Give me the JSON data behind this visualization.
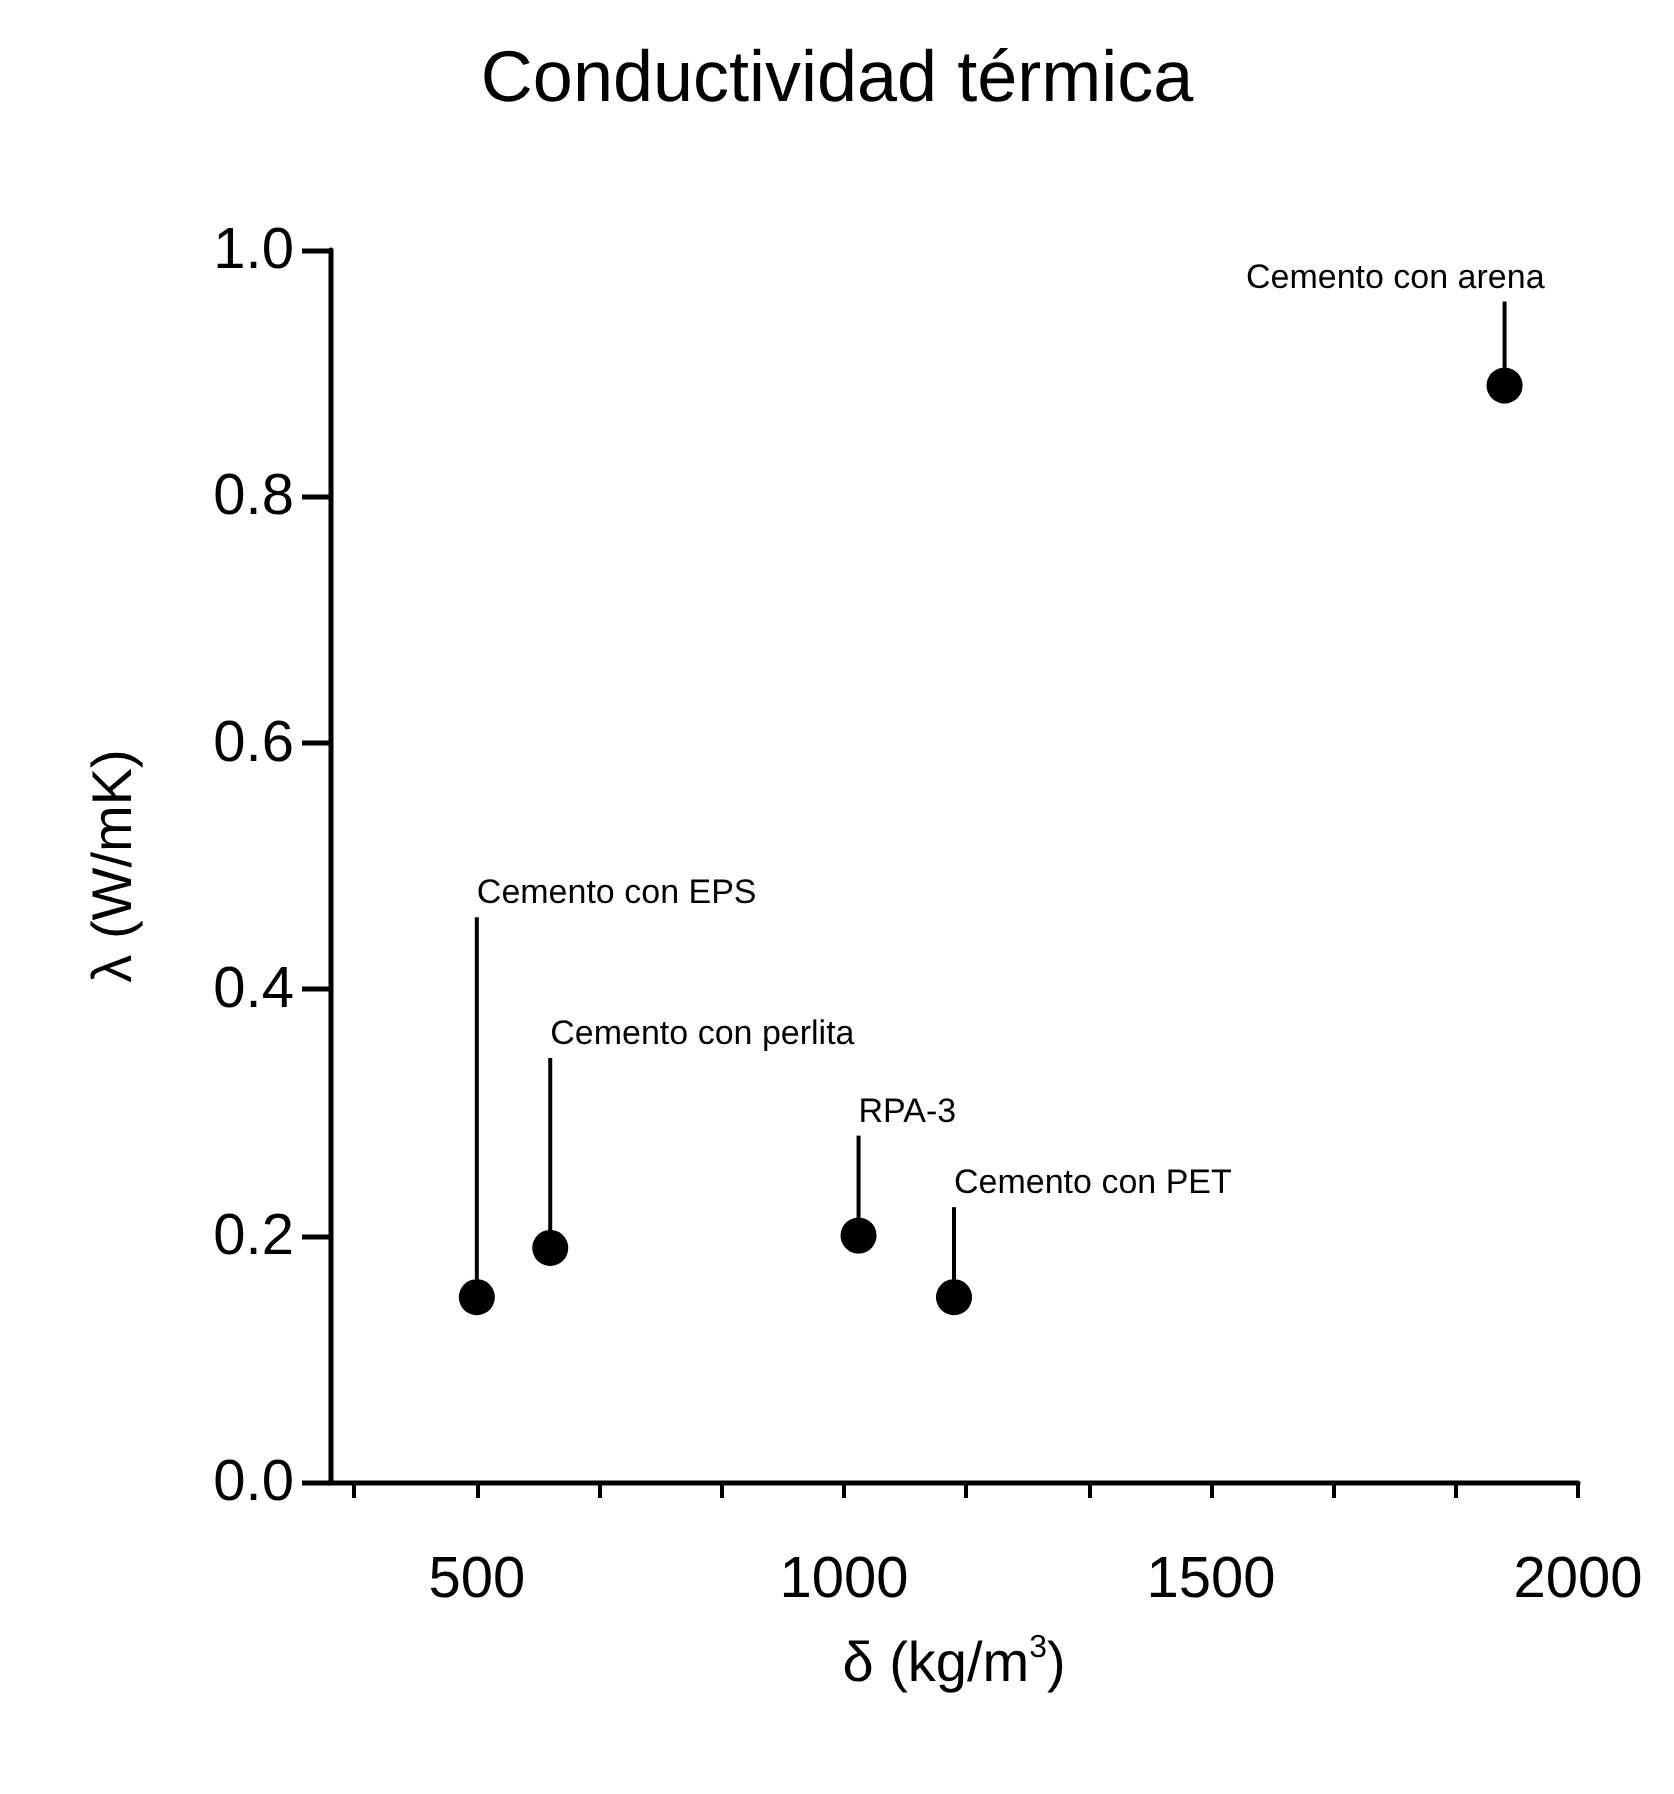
{
  "chart_data": {
    "type": "scatter",
    "title": "Conductividad térmica",
    "xlabel": "δ (kg/m$^{3}$)",
    "ylabel": "λ (W/mK)",
    "x": [
      500,
      600,
      1020,
      1150,
      1900
    ],
    "series": [
      {
        "color": "#000000",
        "values": [
          0.15,
          0.19,
          0.2,
          0.15,
          0.89
        ]
      }
    ],
    "annotations": [
      {
        "text": "Cemento con EPS",
        "x": 500,
        "y": 0.15
      },
      {
        "text": "Cemento con perlita",
        "x": 600,
        "y": 0.19
      },
      {
        "text": "RPA-3",
        "x": 1020,
        "y": 0.2
      },
      {
        "text": "Cemento con PET",
        "x": 1150,
        "y": 0.15
      },
      {
        "text": "Cemento con arena",
        "x": 1900,
        "y": 0.89
      }
    ],
    "xlim": [
      300,
      2000
    ],
    "xticks": [
      {
        "value": 333.3,
        "label": null
      },
      500,
      {
        "value": 666.7,
        "label": null
      },
      {
        "value": 833.3,
        "label": null
      },
      1000,
      {
        "value": 1166.7,
        "label": null
      },
      {
        "value": 1333.3,
        "label": null
      },
      1500,
      {
        "value": 1666.7,
        "label": null
      },
      {
        "value": 1833.3,
        "label": null
      },
      2000
    ],
    "ylim": [
      0,
      1
    ],
    "yticks": [
      {
        "value": 0,
        "label": "0.0"
      },
      0.2,
      0.4,
      0.6,
      0.8,
      {
        "value": 1,
        "label": "1.0"
      }
    ],
    "grid": false,
    "marker": "circle"
  }
}
